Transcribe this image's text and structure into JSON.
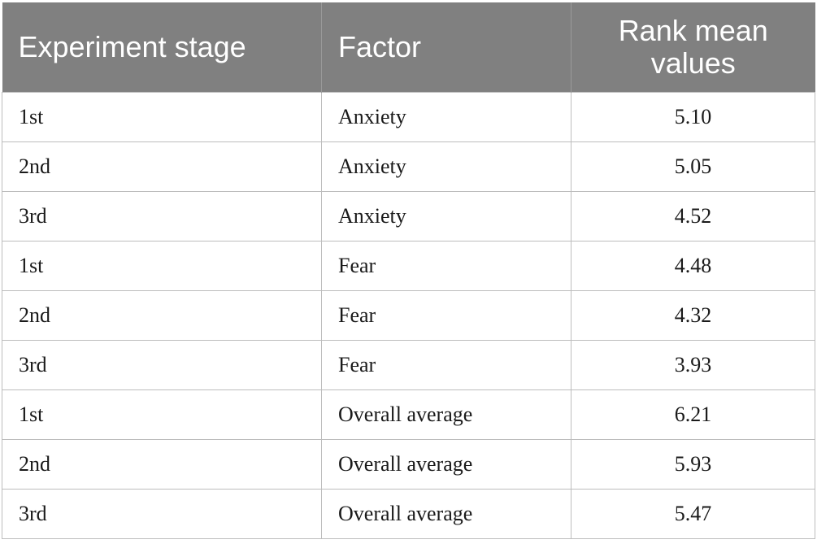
{
  "table": {
    "headers": [
      "Experiment stage",
      "Factor",
      "Rank mean values"
    ],
    "rows": [
      {
        "stage": "1st",
        "factor": "Anxiety",
        "value": "5.10"
      },
      {
        "stage": "2nd",
        "factor": "Anxiety",
        "value": "5.05"
      },
      {
        "stage": "3rd",
        "factor": "Anxiety",
        "value": "4.52"
      },
      {
        "stage": "1st",
        "factor": "Fear",
        "value": "4.48"
      },
      {
        "stage": "2nd",
        "factor": "Fear",
        "value": "4.32"
      },
      {
        "stage": "3rd",
        "factor": "Fear",
        "value": "3.93"
      },
      {
        "stage": "1st",
        "factor": "Overall average",
        "value": "6.21"
      },
      {
        "stage": "2nd",
        "factor": "Overall average",
        "value": "5.93"
      },
      {
        "stage": "3rd",
        "factor": "Overall average",
        "value": "5.47"
      }
    ]
  },
  "colors": {
    "header_bg": "#808080",
    "header_text": "#ffffff",
    "border": "#bdbdbd"
  }
}
